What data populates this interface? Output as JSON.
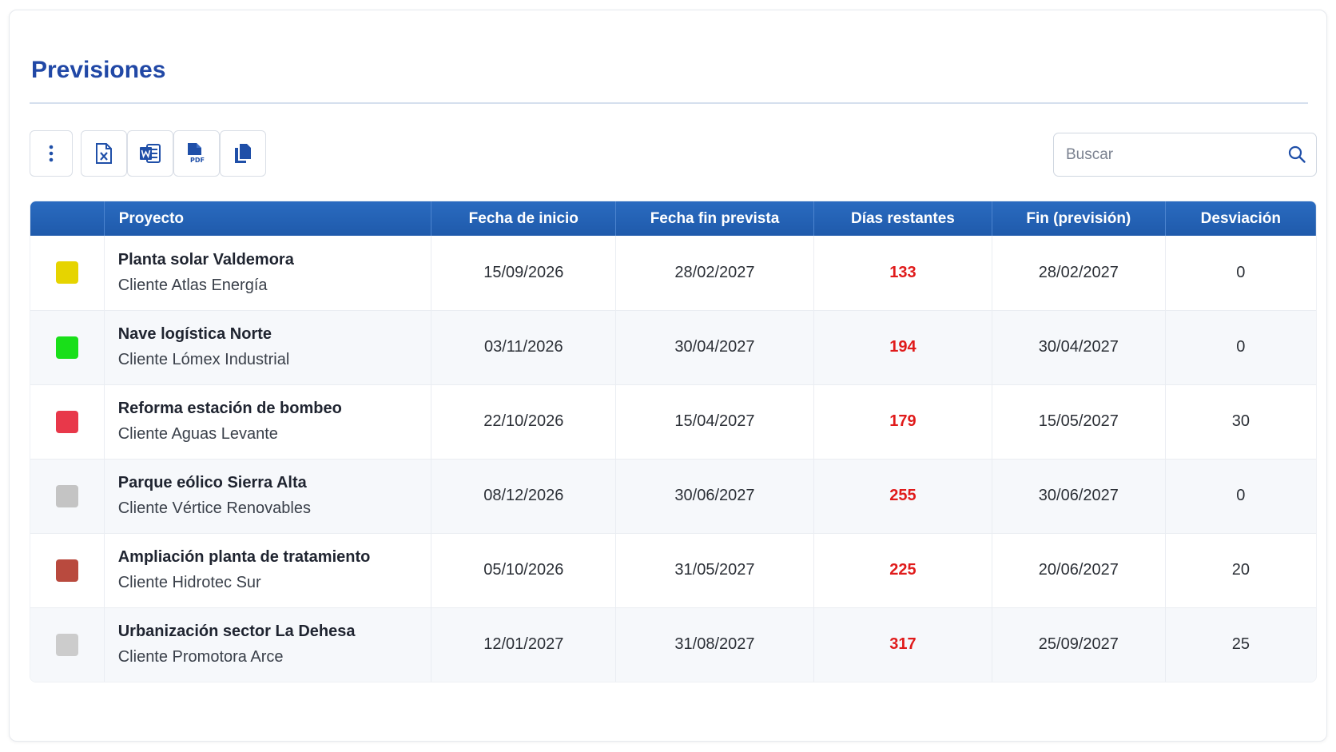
{
  "page": {
    "title": "Previsiones"
  },
  "toolbar": {
    "buttons": [
      {
        "name": "more-options",
        "icon": "kebab-menu-icon"
      },
      {
        "name": "export-excel",
        "icon": "excel-file-icon"
      },
      {
        "name": "export-word",
        "icon": "word-file-icon"
      },
      {
        "name": "export-pdf",
        "icon": "pdf-file-icon"
      },
      {
        "name": "copy",
        "icon": "copy-icon"
      }
    ],
    "accent_color": "#1f4fa8"
  },
  "search": {
    "placeholder": "Buscar",
    "value": "",
    "icon": "search-icon"
  },
  "table": {
    "header_color": "#2462b5",
    "columns": [
      "",
      "Proyecto",
      "Fecha de inicio",
      "Fecha fin prevista",
      "Días restantes",
      "Fin (previsión)",
      "Desviación"
    ],
    "rows": [
      {
        "status_color": "#e6d400",
        "project": "Planta solar Valdemora",
        "client": "Cliente Atlas Energía",
        "start": "15/09/2026",
        "planned_end": "28/02/2027",
        "days_left": "133",
        "forecast_end": "28/02/2027",
        "deviation": "0"
      },
      {
        "status_color": "#19df19",
        "project": "Nave logística Norte",
        "client": "Cliente Lómex Industrial",
        "start": "03/11/2026",
        "planned_end": "30/04/2027",
        "days_left": "194",
        "forecast_end": "30/04/2027",
        "deviation": "0"
      },
      {
        "status_color": "#e8384a",
        "project": "Reforma estación de bombeo",
        "client": "Cliente Aguas Levante",
        "start": "22/10/2026",
        "planned_end": "15/04/2027",
        "days_left": "179",
        "forecast_end": "15/05/2027",
        "deviation": "30"
      },
      {
        "status_color": "#c4c4c4",
        "project": "Parque eólico Sierra Alta",
        "client": "Cliente Vértice Renovables",
        "start": "08/12/2026",
        "planned_end": "30/06/2027",
        "days_left": "255",
        "forecast_end": "30/06/2027",
        "deviation": "0"
      },
      {
        "status_color": "#b94a3e",
        "project": "Ampliación planta de tratamiento",
        "client": "Cliente Hidrotec Sur",
        "start": "05/10/2026",
        "planned_end": "31/05/2027",
        "days_left": "225",
        "forecast_end": "20/06/2027",
        "deviation": "20"
      },
      {
        "status_color": "#cccccc",
        "project": "Urbanización sector La Dehesa",
        "client": "Cliente Promotora Arce",
        "start": "12/01/2027",
        "planned_end": "31/08/2027",
        "days_left": "317",
        "forecast_end": "25/09/2027",
        "deviation": "25"
      }
    ]
  }
}
